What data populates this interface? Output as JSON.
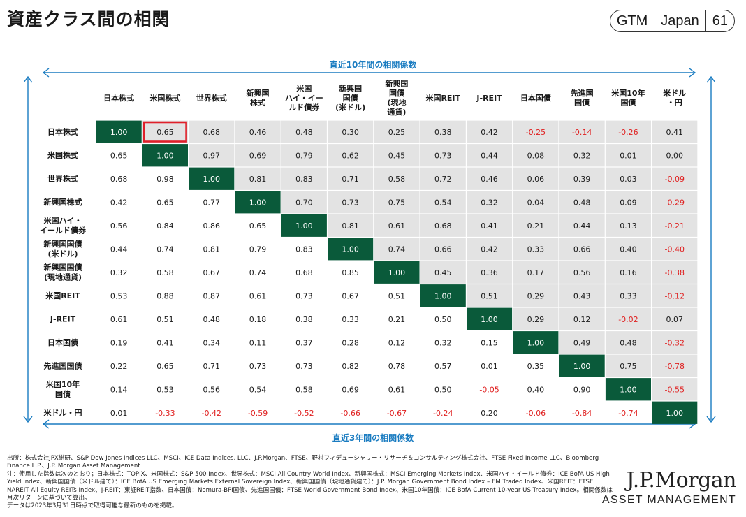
{
  "header": {
    "title": "資産クラス間の相関",
    "badge": [
      "GTM",
      "Japan",
      "61"
    ]
  },
  "chart_data": {
    "type": "heatmap",
    "top_label": "直近10年間の相関係数",
    "bottom_label": "直近3年間の相関係数",
    "columns": [
      "日本株式",
      "米国株式",
      "世界株式",
      "新興国\n株式",
      "米国\nハイ・イー\nルド債券",
      "新興国\n国債\n(米ドル)",
      "新興国\n国債\n(現地\n通貨)",
      "米国REIT",
      "J-REIT",
      "日本国債",
      "先進国\n国債",
      "米国10年\n国債",
      "米ドル\n・円"
    ],
    "rows": [
      "日本株式",
      "米国株式",
      "世界株式",
      "新興国株式",
      "米国ハイ・\nイールド債券",
      "新興国国債\n(米ドル)",
      "新興国国債\n(現地通貨)",
      "米国REIT",
      "J-REIT",
      "日本国債",
      "先進国国債",
      "米国10年\n国債",
      "米ドル・円"
    ],
    "values": [
      [
        "1.00",
        "0.65",
        "0.68",
        "0.46",
        "0.48",
        "0.30",
        "0.25",
        "0.38",
        "0.42",
        "-0.25",
        "-0.14",
        "-0.26",
        "0.41"
      ],
      [
        "0.65",
        "1.00",
        "0.97",
        "0.69",
        "0.79",
        "0.62",
        "0.45",
        "0.73",
        "0.44",
        "0.08",
        "0.32",
        "0.01",
        "0.00"
      ],
      [
        "0.68",
        "0.98",
        "1.00",
        "0.81",
        "0.83",
        "0.71",
        "0.58",
        "0.72",
        "0.46",
        "0.06",
        "0.39",
        "0.03",
        "-0.09"
      ],
      [
        "0.42",
        "0.65",
        "0.77",
        "1.00",
        "0.70",
        "0.73",
        "0.75",
        "0.54",
        "0.32",
        "0.04",
        "0.48",
        "0.09",
        "-0.29"
      ],
      [
        "0.56",
        "0.84",
        "0.86",
        "0.65",
        "1.00",
        "0.81",
        "0.61",
        "0.68",
        "0.41",
        "0.21",
        "0.44",
        "0.13",
        "-0.21"
      ],
      [
        "0.44",
        "0.74",
        "0.81",
        "0.79",
        "0.83",
        "1.00",
        "0.74",
        "0.66",
        "0.42",
        "0.33",
        "0.66",
        "0.40",
        "-0.40"
      ],
      [
        "0.32",
        "0.58",
        "0.67",
        "0.74",
        "0.68",
        "0.85",
        "1.00",
        "0.45",
        "0.36",
        "0.17",
        "0.56",
        "0.16",
        "-0.38"
      ],
      [
        "0.53",
        "0.88",
        "0.87",
        "0.61",
        "0.73",
        "0.67",
        "0.51",
        "1.00",
        "0.51",
        "0.29",
        "0.43",
        "0.33",
        "-0.12"
      ],
      [
        "0.61",
        "0.51",
        "0.48",
        "0.18",
        "0.38",
        "0.33",
        "0.21",
        "0.50",
        "1.00",
        "0.29",
        "0.12",
        "-0.02",
        "0.07"
      ],
      [
        "0.19",
        "0.41",
        "0.34",
        "0.11",
        "0.37",
        "0.28",
        "0.12",
        "0.32",
        "0.15",
        "1.00",
        "0.49",
        "0.48",
        "-0.32"
      ],
      [
        "0.22",
        "0.65",
        "0.71",
        "0.73",
        "0.73",
        "0.82",
        "0.78",
        "0.57",
        "0.01",
        "0.35",
        "1.00",
        "0.75",
        "-0.78"
      ],
      [
        "0.14",
        "0.53",
        "0.56",
        "0.54",
        "0.58",
        "0.69",
        "0.61",
        "0.50",
        "-0.05",
        "0.40",
        "0.90",
        "1.00",
        "-0.55"
      ],
      [
        "0.01",
        "-0.33",
        "-0.42",
        "-0.59",
        "-0.52",
        "-0.66",
        "-0.67",
        "-0.24",
        "0.20",
        "-0.06",
        "-0.84",
        "-0.74",
        "1.00"
      ]
    ],
    "highlight_cell": [
      0,
      1
    ],
    "colors": {
      "diagonal": "#0a5a3a",
      "upper": "#e3e3e3",
      "negative": "#e02020",
      "highlight": "#e0202a",
      "axis": "#1a7cc1"
    }
  },
  "footer": {
    "text": "出所：株式会社JPX総研、S&P Dow Jones Indices LLC、MSCI、ICE Data Indices, LLC、J.P.Morgan、FTSE、野村フィデューシャリー・リサーチ＆コンサルティング株式会社、FTSE Fixed Income LLC、Bloomberg Finance L.P.、J.P. Morgan Asset Management\n注：使用した指数は次のとおり；日本株式：TOPIX、米国株式：S&P 500 Index、世界株式：MSCI All Country World Index、新興国株式：MSCI Emerging Markets Index、米国ハイ・イールド債券：ICE BofA US High Yield Index、新興国国債（米ドル建て）：ICE BofA US Emerging Markets External Sovereign Index、新興国国債（現地通貨建て）：J.P. Morgan Government Bond Index – EM Traded Index、米国REIT：FTSE NAREIT All Equity REITs Index、J-REIT：東証REIT指数、日本国債：Nomura-BPI国債、先進国国債：FTSE World Government Bond Index、米国10年国債：ICE BofA Current 10-year US Treasury Index。相関係数は月次リターンに基づいて算出。\nデータは2023年3月31日時点で取得可能な最新のものを掲載。"
  },
  "brand": {
    "name": "J.P.Morgan",
    "sub": "ASSET MANAGEMENT"
  }
}
